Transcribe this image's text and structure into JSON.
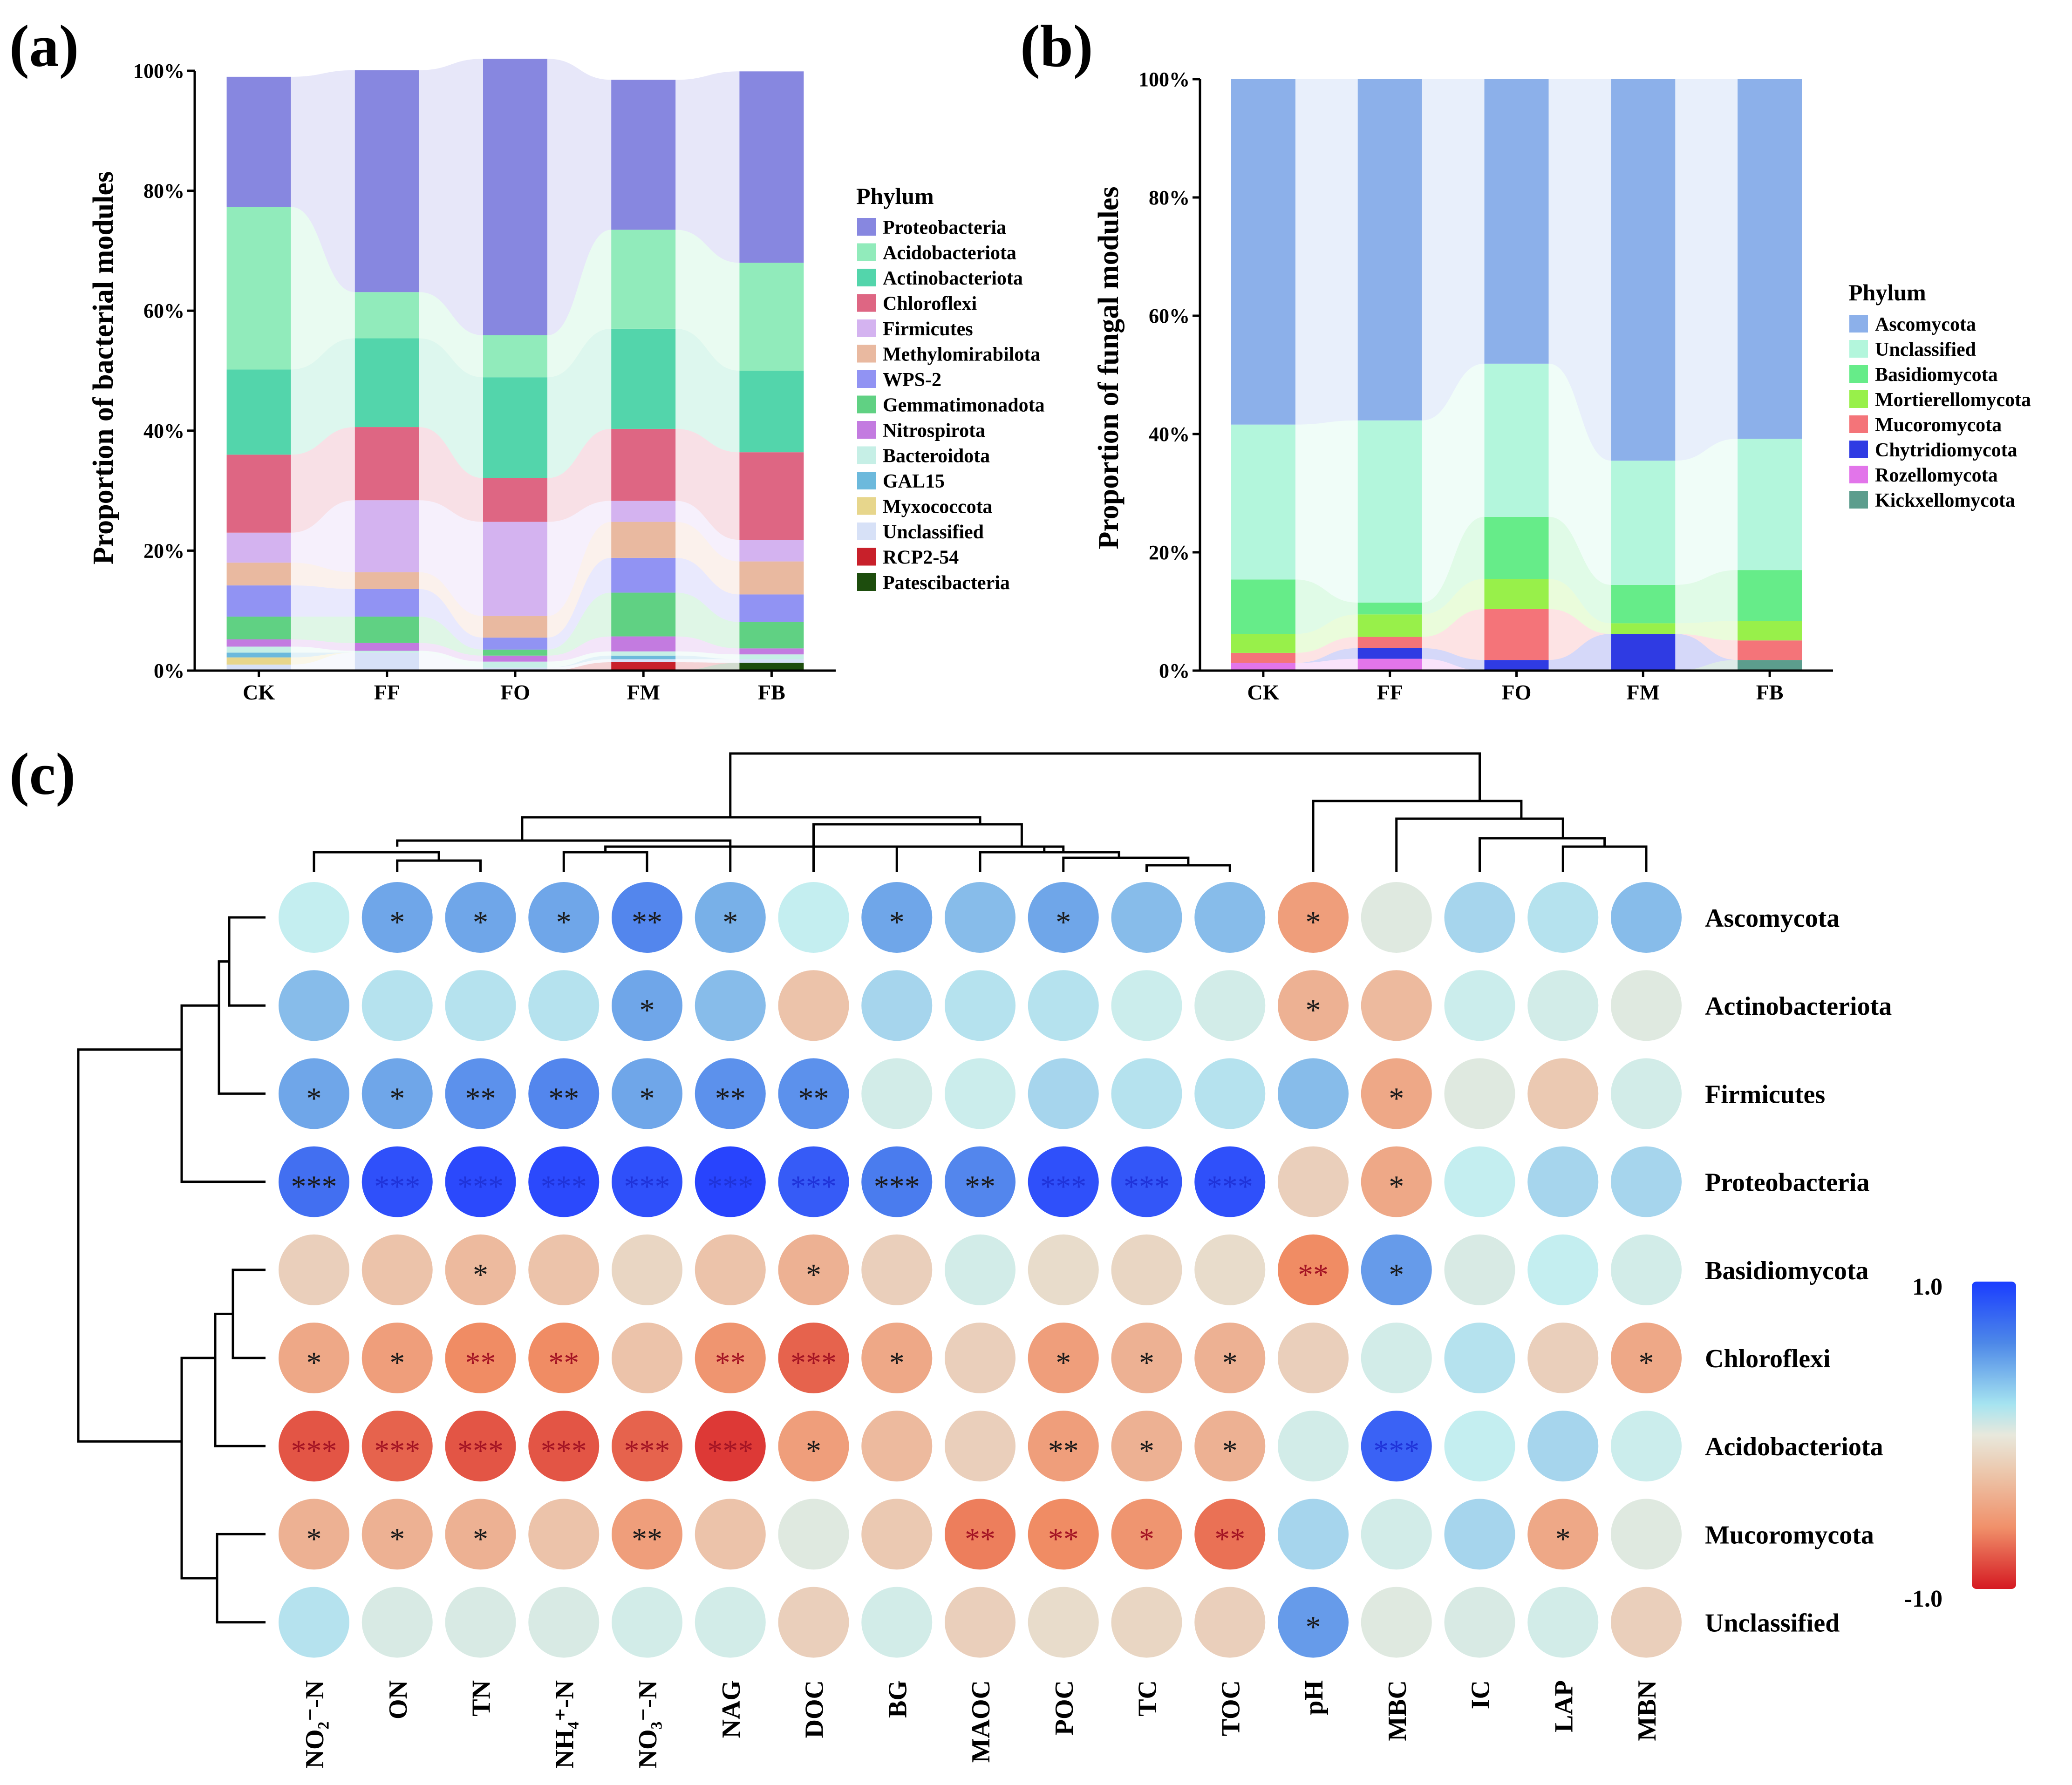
{
  "panels": {
    "a": {
      "label": "(a)",
      "ylabel": "Proportion of bacterial modules",
      "legend_title": "Phylum"
    },
    "b": {
      "label": "(b)",
      "ylabel": "Proportion of fungal modules",
      "legend_title": "Phylum"
    },
    "c": {
      "label": "(c)",
      "colorbar_max": "1.0",
      "colorbar_min": "-1.0"
    }
  },
  "chart_data": [
    {
      "id": "a",
      "type": "bar",
      "stacked": true,
      "percent": true,
      "title": "",
      "xlabel": "",
      "ylabel": "Proportion of bacterial modules",
      "ylim": [
        0,
        100
      ],
      "yticks": [
        "0%",
        "20%",
        "40%",
        "60%",
        "80%",
        "100%"
      ],
      "categories": [
        "CK",
        "FF",
        "FO",
        "FM",
        "FB"
      ],
      "legend_title": "Phylum",
      "legend_position": "right",
      "series": [
        {
          "name": "Patescibacteria",
          "color": "#1d4d0d",
          "values": [
            0,
            0,
            0,
            0,
            1.3
          ]
        },
        {
          "name": "RCP2-54",
          "color": "#c8202a",
          "values": [
            0,
            0,
            0,
            1.4,
            0
          ]
        },
        {
          "name": "Unclassified",
          "color": "#d7e1f7",
          "values": [
            1.0,
            3.0,
            0.5,
            0.5,
            0.6
          ]
        },
        {
          "name": "Myxococcota",
          "color": "#e7d68c",
          "values": [
            1.2,
            0,
            0,
            0,
            0
          ]
        },
        {
          "name": "GAL15",
          "color": "#6cb9dc",
          "values": [
            0.8,
            0,
            0,
            0.6,
            0
          ]
        },
        {
          "name": "Bacteroidota",
          "color": "#c6efe6",
          "values": [
            1.0,
            0.3,
            1.0,
            0.7,
            0.8
          ]
        },
        {
          "name": "Nitrospirota",
          "color": "#c37be0",
          "values": [
            1.2,
            1.3,
            1.0,
            2.5,
            1.0
          ]
        },
        {
          "name": "Gemmatimonadota",
          "color": "#60d183",
          "values": [
            3.8,
            4.4,
            1.0,
            7.3,
            4.4
          ]
        },
        {
          "name": "WPS-2",
          "color": "#9193f3",
          "values": [
            5.2,
            4.6,
            2.0,
            5.8,
            4.6
          ]
        },
        {
          "name": "Methylomirabilota",
          "color": "#e9b9a0",
          "values": [
            3.8,
            2.8,
            3.6,
            6.0,
            5.5
          ]
        },
        {
          "name": "Firmicutes",
          "color": "#d4b3f0",
          "values": [
            5.0,
            12.0,
            15.7,
            3.5,
            3.6
          ]
        },
        {
          "name": "Chloroflexi",
          "color": "#de6683",
          "values": [
            13.0,
            12.2,
            7.3,
            12.0,
            14.6
          ]
        },
        {
          "name": "Actinobacteriota",
          "color": "#53d5ab",
          "values": [
            14.2,
            14.8,
            16.8,
            16.7,
            13.6
          ]
        },
        {
          "name": "Acidobacteriota",
          "color": "#91ebbb",
          "values": [
            27.1,
            7.7,
            7.0,
            16.5,
            18.0
          ]
        },
        {
          "name": "Proteobacteria",
          "color": "#8787e0",
          "values": [
            21.7,
            37.0,
            46.1,
            25.0,
            31.9
          ]
        }
      ]
    },
    {
      "id": "b",
      "type": "bar",
      "stacked": true,
      "percent": true,
      "title": "",
      "xlabel": "",
      "ylabel": "Proportion of fungal modules",
      "ylim": [
        0,
        100
      ],
      "yticks": [
        "0%",
        "20%",
        "40%",
        "60%",
        "80%",
        "100%"
      ],
      "categories": [
        "CK",
        "FF",
        "FO",
        "FM",
        "FB"
      ],
      "legend_title": "Phylum",
      "legend_position": "right",
      "series": [
        {
          "name": "Kickxellomycota",
          "color": "#5c9d8d",
          "values": [
            0,
            0,
            0,
            0,
            1.8
          ]
        },
        {
          "name": "Rozellomycota",
          "color": "#e275ea",
          "values": [
            1.3,
            2.0,
            0,
            0,
            0
          ]
        },
        {
          "name": "Chytridiomycota",
          "color": "#2f3be3",
          "values": [
            0,
            1.8,
            1.8,
            6.2,
            0
          ]
        },
        {
          "name": "Mucoromycota",
          "color": "#f47479",
          "values": [
            1.7,
            1.9,
            8.6,
            0,
            3.3
          ]
        },
        {
          "name": "Mortierellomycota",
          "color": "#98f04a",
          "values": [
            3.2,
            3.8,
            5.1,
            1.8,
            3.3
          ]
        },
        {
          "name": "Basidiomycota",
          "color": "#66ec89",
          "values": [
            9.2,
            2.0,
            10.5,
            6.5,
            8.6
          ]
        },
        {
          "name": "Unclassified",
          "color": "#b3f6dc",
          "values": [
            26.2,
            30.8,
            25.9,
            21.0,
            22.2
          ]
        },
        {
          "name": "Ascomycota",
          "color": "#8cb0ea",
          "values": [
            58.4,
            57.7,
            48.1,
            64.5,
            60.8
          ]
        }
      ]
    },
    {
      "id": "c",
      "type": "heatmap",
      "title": "",
      "columns": [
        "NO₂⁻-N",
        "ON",
        "TN",
        "NH₄⁺-N",
        "NO₃⁻-N",
        "NAG",
        "DOC",
        "BG",
        "MAOC",
        "POC",
        "TC",
        "TOC",
        "pH",
        "MBC",
        "IC",
        "LAP",
        "MBN"
      ],
      "rows": [
        "Ascomycota",
        "Actinobacteriota",
        "Firmicutes",
        "Proteobacteria",
        "Basidiomycota",
        "Chloroflexi",
        "Acidobacteriota",
        "Mucoromycota",
        "Unclassified"
      ],
      "color_range": [
        -1.0,
        1.0
      ],
      "colorbar_ticks": [
        "1.0",
        "-1.0"
      ],
      "dendrograms": {
        "columns": true,
        "rows": true
      },
      "values": [
        [
          0.25,
          0.55,
          0.55,
          0.55,
          0.7,
          0.5,
          0.25,
          0.55,
          0.45,
          0.55,
          0.45,
          0.45,
          -0.5,
          0.05,
          0.35,
          0.3,
          0.45
        ],
        [
          0.45,
          0.3,
          0.3,
          0.3,
          0.55,
          0.45,
          -0.3,
          0.35,
          0.3,
          0.3,
          0.2,
          0.15,
          -0.4,
          -0.35,
          0.2,
          0.15,
          0.05
        ],
        [
          0.55,
          0.55,
          0.65,
          0.7,
          0.55,
          0.65,
          0.65,
          0.15,
          0.2,
          0.35,
          0.3,
          0.3,
          0.45,
          -0.45,
          0.05,
          -0.25,
          0.15
        ],
        [
          0.8,
          0.92,
          0.95,
          0.95,
          0.92,
          0.97,
          0.88,
          0.75,
          0.7,
          0.92,
          0.9,
          0.92,
          -0.2,
          -0.45,
          0.25,
          0.35,
          0.35
        ],
        [
          -0.2,
          -0.3,
          -0.35,
          -0.3,
          -0.15,
          -0.3,
          -0.4,
          -0.2,
          0.15,
          -0.1,
          -0.15,
          -0.1,
          -0.6,
          0.6,
          0.1,
          0.25,
          0.15
        ],
        [
          -0.45,
          -0.5,
          -0.6,
          -0.6,
          -0.3,
          -0.55,
          -0.75,
          -0.45,
          -0.2,
          -0.5,
          -0.4,
          -0.4,
          -0.2,
          0.15,
          0.3,
          -0.2,
          -0.45
        ],
        [
          -0.8,
          -0.75,
          -0.8,
          -0.8,
          -0.75,
          -0.9,
          -0.5,
          -0.35,
          -0.2,
          -0.5,
          -0.4,
          -0.4,
          0.15,
          0.85,
          0.25,
          0.35,
          0.2
        ],
        [
          -0.4,
          -0.4,
          -0.4,
          -0.3,
          -0.5,
          -0.3,
          0.05,
          -0.25,
          -0.65,
          -0.6,
          -0.55,
          -0.7,
          0.35,
          0.15,
          0.35,
          -0.45,
          0.05
        ],
        [
          0.3,
          0.1,
          0.1,
          0.1,
          0.15,
          0.15,
          -0.2,
          0.15,
          -0.2,
          -0.1,
          -0.15,
          -0.2,
          0.6,
          0.05,
          0.1,
          0.15,
          -0.2
        ]
      ],
      "significance": [
        [
          "",
          "*",
          "*",
          "*",
          "**",
          "*",
          "",
          "*",
          "",
          "*",
          "",
          "",
          "*",
          "",
          "",
          "",
          ""
        ],
        [
          "",
          "",
          "",
          "",
          "*",
          "",
          "",
          "",
          "",
          "",
          "",
          "",
          "*",
          "",
          "",
          "",
          ""
        ],
        [
          "*",
          "*",
          "**",
          "**",
          "*",
          "**",
          "**",
          "",
          "",
          "",
          "",
          "",
          "",
          "*",
          "",
          "",
          ""
        ],
        [
          "***",
          "***",
          "***",
          "***",
          "***",
          "***",
          "***",
          "***",
          "**",
          "***",
          "***",
          "***",
          "",
          "*",
          "",
          "",
          ""
        ],
        [
          "",
          "",
          "*",
          "",
          "",
          "",
          "*",
          "",
          "",
          "",
          "",
          "",
          "**",
          "*",
          "",
          "",
          ""
        ],
        [
          "*",
          "*",
          "**",
          "**",
          "",
          "**",
          "***",
          "*",
          "",
          "*",
          "*",
          "*",
          "",
          "",
          "",
          "",
          "*"
        ],
        [
          "***",
          "***",
          "***",
          "***",
          "***",
          "***",
          "*",
          "",
          "",
          "**",
          "*",
          "*",
          "",
          "***",
          "",
          "",
          ""
        ],
        [
          "*",
          "*",
          "*",
          "",
          "**",
          "",
          "",
          "",
          "**",
          "**",
          "*",
          "**",
          "",
          "",
          "",
          "*",
          ""
        ],
        [
          "",
          "",
          "",
          "",
          "",
          "",
          "",
          "",
          "",
          "",
          "",
          "",
          "*",
          "",
          "",
          "",
          ""
        ]
      ]
    }
  ]
}
